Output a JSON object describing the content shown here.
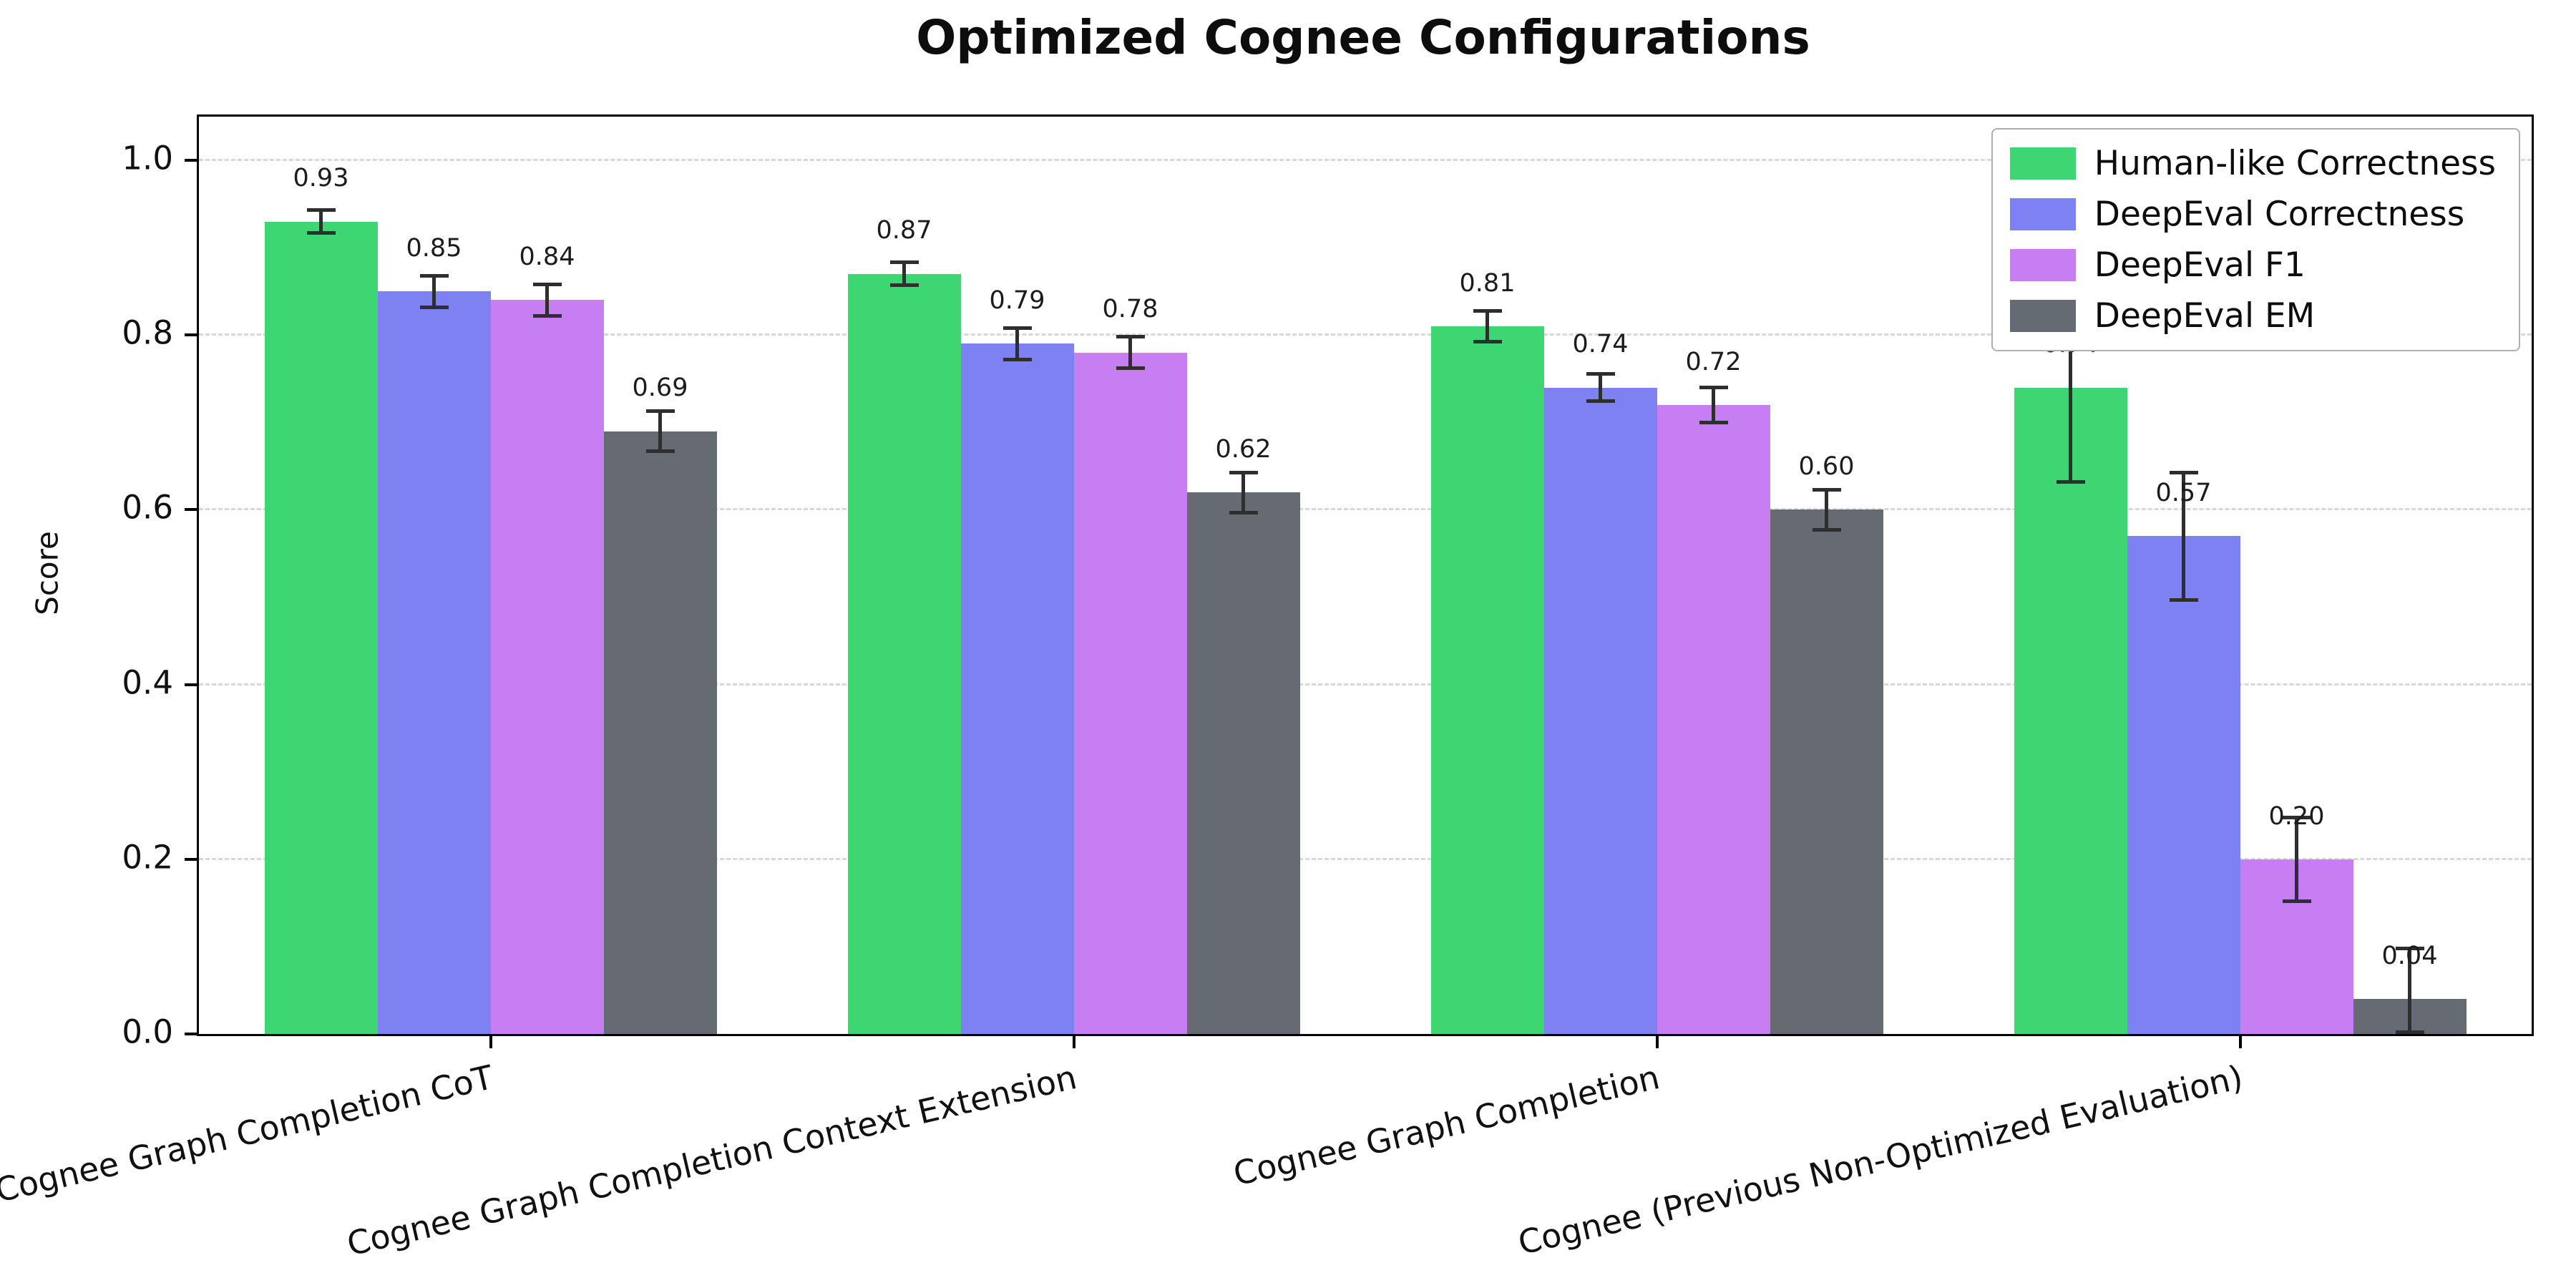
{
  "chart_data": {
    "type": "bar",
    "title": "Optimized Cognee Configurations",
    "xlabel": "",
    "ylabel": "Score",
    "ylim": [
      0,
      1.05
    ],
    "yticks": [
      0.0,
      0.2,
      0.4,
      0.6,
      0.8,
      1.0
    ],
    "grid": "horizontal-dashed",
    "legend_position": "upper-right",
    "categories": [
      "Cognee Graph Completion CoT",
      "Cognee Graph Completion Context Extension",
      "Cognee Graph Completion",
      "Cognee (Previous Non-Optimized Evaluation)"
    ],
    "series": [
      {
        "name": "Human-like Correctness",
        "color": "#3ed672",
        "values": [
          0.93,
          0.87,
          0.81,
          0.74
        ],
        "errors": [
          0.015,
          0.015,
          0.02,
          0.11
        ]
      },
      {
        "name": "DeepEval Correctness",
        "color": "#7d81f2",
        "values": [
          0.85,
          0.79,
          0.74,
          0.57
        ],
        "errors": [
          0.02,
          0.02,
          0.018,
          0.075
        ]
      },
      {
        "name": "DeepEval F1",
        "color": "#c77ef2",
        "values": [
          0.84,
          0.78,
          0.72,
          0.2
        ],
        "errors": [
          0.02,
          0.02,
          0.022,
          0.05
        ]
      },
      {
        "name": "DeepEval EM",
        "color": "#666a72",
        "values": [
          0.69,
          0.62,
          0.6,
          0.04
        ],
        "errors": [
          0.025,
          0.025,
          0.025,
          0.06
        ]
      }
    ],
    "error_bar_color": "#2e2e2e",
    "axis_color": "#000000",
    "background_color": "#ffffff"
  }
}
